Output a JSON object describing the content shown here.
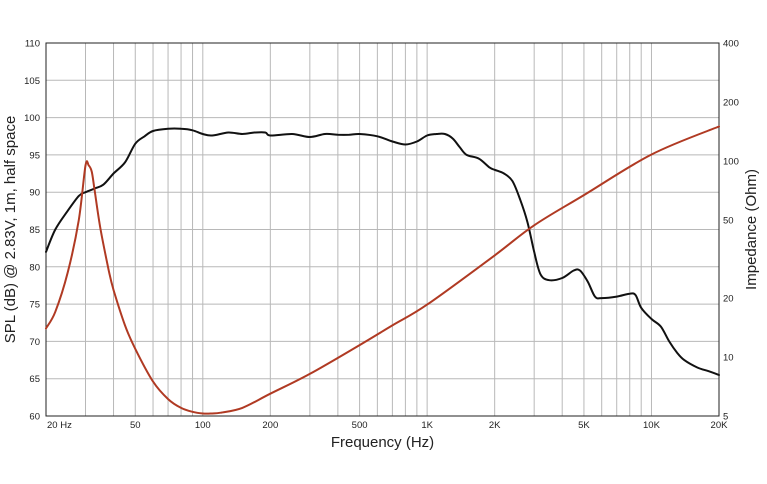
{
  "chart_data": {
    "type": "line",
    "xlabel": "Frequency (Hz)",
    "ylabel_left": "SPL (dB) @ 2.83V, 1m, half space",
    "ylabel_right": "Impedance (Ohm)",
    "x_scale": "log",
    "xlim": [
      20,
      20000
    ],
    "ylim_left": [
      60,
      110
    ],
    "ylim_right": [
      5,
      400
    ],
    "y_right_scale": "log",
    "grid": true,
    "x_tick_labels": [
      {
        "value": 20,
        "label": "20  Hz"
      },
      {
        "value": 50,
        "label": "50"
      },
      {
        "value": 100,
        "label": "100"
      },
      {
        "value": 200,
        "label": "200"
      },
      {
        "value": 500,
        "label": "500"
      },
      {
        "value": 1000,
        "label": "1K"
      },
      {
        "value": 2000,
        "label": "2K"
      },
      {
        "value": 5000,
        "label": "5K"
      },
      {
        "value": 10000,
        "label": "10K"
      },
      {
        "value": 20000,
        "label": "20K"
      }
    ],
    "y_left_ticks": [
      60,
      65,
      70,
      75,
      80,
      85,
      90,
      95,
      100,
      105,
      110
    ],
    "y_right_ticks": [
      5,
      10,
      20,
      50,
      100,
      200,
      400
    ],
    "series": [
      {
        "axis": "left",
        "color": "#111111",
        "x": [
          20,
          22,
          25,
          28,
          30,
          33,
          36,
          40,
          45,
          50,
          55,
          60,
          70,
          80,
          90,
          100,
          110,
          130,
          150,
          170,
          190,
          200,
          250,
          300,
          350,
          400,
          450,
          500,
          600,
          700,
          800,
          900,
          1000,
          1100,
          1200,
          1300,
          1400,
          1500,
          1700,
          1900,
          2000,
          2200,
          2400,
          2600,
          2800,
          3000,
          3200,
          3500,
          4000,
          4500,
          4800,
          5200,
          5600,
          6000,
          7000,
          8000,
          8500,
          9000,
          10000,
          11000,
          12000,
          13000,
          14000,
          16000,
          18000,
          20000
        ],
        "values": [
          82,
          85,
          87.5,
          89.5,
          90,
          90.5,
          91,
          92.5,
          94,
          96.5,
          97.5,
          98.2,
          98.5,
          98.5,
          98.3,
          97.8,
          97.6,
          98,
          97.8,
          98,
          98,
          97.6,
          97.8,
          97.4,
          97.8,
          97.7,
          97.7,
          97.8,
          97.5,
          96.8,
          96.4,
          96.8,
          97.6,
          97.8,
          97.8,
          97.2,
          96,
          95,
          94.5,
          93.3,
          93,
          92.5,
          91.5,
          89,
          86,
          82,
          79,
          78.2,
          78.5,
          79.5,
          79.5,
          78,
          76,
          75.8,
          76,
          76.4,
          76.2,
          74.5,
          73,
          72,
          70,
          68.5,
          67.5,
          66.5,
          66,
          65.5
        ]
      },
      {
        "axis": "right",
        "color": "#b03a23",
        "x": [
          20,
          22,
          25,
          28,
          30,
          31,
          32,
          33,
          35,
          38,
          40,
          45,
          50,
          60,
          70,
          80,
          90,
          100,
          110,
          120,
          150,
          200,
          300,
          500,
          700,
          1000,
          2000,
          3000,
          5000,
          10000,
          20000
        ],
        "values": [
          14,
          17,
          27,
          50,
          95,
          95,
          88,
          70,
          45,
          28,
          22,
          14.5,
          11,
          7.5,
          6.1,
          5.5,
          5.25,
          5.15,
          5.15,
          5.2,
          5.5,
          6.5,
          8.2,
          11.5,
          14.5,
          18.5,
          33,
          47,
          67,
          108,
          150
        ]
      }
    ]
  }
}
